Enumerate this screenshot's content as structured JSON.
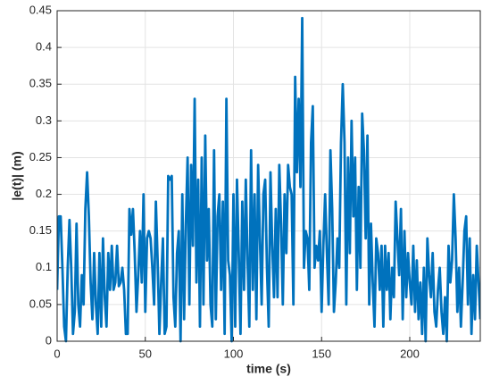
{
  "chart_data": {
    "type": "line",
    "xlabel": "time (s)",
    "ylabel": "|e(t)| (m)",
    "x": [
      0,
      1,
      2,
      3,
      4,
      5,
      6,
      7,
      8,
      9,
      10,
      11,
      12,
      13,
      14,
      15,
      16,
      17,
      18,
      19,
      20,
      21,
      22,
      23,
      24,
      25,
      26,
      27,
      28,
      29,
      30,
      31,
      32,
      33,
      34,
      35,
      36,
      37,
      38,
      39,
      40,
      41,
      42,
      43,
      44,
      45,
      46,
      47,
      48,
      49,
      50,
      51,
      52,
      53,
      54,
      55,
      56,
      57,
      58,
      59,
      60,
      61,
      62,
      63,
      64,
      65,
      66,
      67,
      68,
      69,
      70,
      71,
      72,
      73,
      74,
      75,
      76,
      77,
      78,
      79,
      80,
      81,
      82,
      83,
      84,
      85,
      86,
      87,
      88,
      89,
      90,
      91,
      92,
      93,
      94,
      95,
      96,
      97,
      98,
      99,
      100,
      101,
      102,
      103,
      104,
      105,
      106,
      107,
      108,
      109,
      110,
      111,
      112,
      113,
      114,
      115,
      116,
      117,
      118,
      119,
      120,
      121,
      122,
      123,
      124,
      125,
      126,
      127,
      128,
      129,
      130,
      131,
      132,
      133,
      134,
      135,
      136,
      137,
      138,
      139,
      140,
      141,
      142,
      143,
      144,
      145,
      146,
      147,
      148,
      149,
      150,
      151,
      152,
      153,
      154,
      155,
      156,
      157,
      158,
      159,
      160,
      161,
      162,
      163,
      164,
      165,
      166,
      167,
      168,
      169,
      170,
      171,
      172,
      173,
      174,
      175,
      176,
      177,
      178,
      179,
      180,
      181,
      182,
      183,
      184,
      185,
      186,
      187,
      188,
      189,
      190,
      191,
      192,
      193,
      194,
      195,
      196,
      197,
      198,
      199,
      200,
      201,
      202,
      203,
      204,
      205,
      206,
      207,
      208,
      209,
      210,
      211,
      212,
      213,
      214,
      215,
      216,
      217,
      218,
      219,
      220,
      221,
      222,
      223,
      224,
      225,
      226,
      227,
      228,
      229,
      230,
      231,
      232,
      233,
      234,
      235,
      236,
      237,
      238,
      239,
      240
    ],
    "series": [
      {
        "name": "e",
        "color": "#0072bd",
        "values": [
          0.07,
          0.17,
          0.17,
          0.1,
          0.02,
          0.0,
          0.1,
          0.165,
          0.1,
          0.01,
          0.04,
          0.16,
          0.05,
          0.02,
          0.09,
          0.05,
          0.18,
          0.23,
          0.17,
          0.08,
          0.03,
          0.12,
          0.05,
          0.01,
          0.12,
          0.02,
          0.14,
          0.06,
          0.02,
          0.12,
          0.07,
          0.13,
          0.07,
          0.08,
          0.13,
          0.075,
          0.08,
          0.1,
          0.07,
          0.01,
          0.01,
          0.18,
          0.145,
          0.18,
          0.12,
          0.04,
          0.09,
          0.15,
          0.08,
          0.2,
          0.04,
          0.14,
          0.15,
          0.14,
          0.1,
          0.05,
          0.19,
          0.11,
          0.01,
          0.08,
          0.14,
          0.01,
          0.02,
          0.225,
          0.22,
          0.225,
          0.06,
          0.02,
          0.12,
          0.15,
          0.0,
          0.2,
          0.03,
          0.16,
          0.25,
          0.05,
          0.24,
          0.13,
          0.33,
          0.08,
          0.22,
          0.02,
          0.25,
          0.05,
          0.28,
          0.11,
          0.18,
          0.05,
          0.02,
          0.26,
          0.03,
          0.17,
          0.2,
          0.07,
          0.19,
          0.01,
          0.33,
          0.11,
          0.09,
          0.0,
          0.2,
          0.02,
          0.22,
          0.12,
          0.01,
          0.19,
          0.07,
          0.22,
          0.11,
          0.02,
          0.26,
          0.07,
          0.2,
          0.03,
          0.24,
          0.14,
          0.05,
          0.2,
          0.22,
          0.1,
          0.02,
          0.23,
          0.13,
          0.06,
          0.18,
          0.06,
          0.24,
          0.16,
          0.05,
          0.2,
          0.12,
          0.24,
          0.21,
          0.2,
          0.05,
          0.36,
          0.23,
          0.33,
          0.21,
          0.44,
          0.1,
          0.15,
          0.14,
          0.07,
          0.27,
          0.32,
          0.1,
          0.13,
          0.11,
          0.15,
          0.04,
          0.13,
          0.2,
          0.12,
          0.05,
          0.26,
          0.18,
          0.04,
          0.08,
          0.14,
          0.1,
          0.27,
          0.35,
          0.27,
          0.05,
          0.25,
          0.12,
          0.3,
          0.17,
          0.25,
          0.07,
          0.21,
          0.1,
          0.31,
          0.26,
          0.14,
          0.28,
          0.05,
          0.16,
          0.08,
          0.02,
          0.14,
          0.12,
          0.07,
          0.13,
          0.02,
          0.13,
          0.07,
          0.12,
          0.03,
          0.1,
          0.06,
          0.19,
          0.14,
          0.09,
          0.18,
          0.03,
          0.15,
          0.06,
          0.12,
          0.08,
          0.05,
          0.13,
          0.04,
          0.11,
          0.03,
          0.08,
          0.01,
          0.1,
          0.0,
          0.14,
          0.09,
          0.06,
          0.12,
          0.04,
          0.02,
          0.07,
          0.1,
          0.04,
          0.01,
          0.06,
          0.0,
          0.13,
          0.08,
          0.11,
          0.2,
          0.14,
          0.04,
          0.1,
          0.02,
          0.08,
          0.15,
          0.17,
          0.05,
          0.14,
          0.01,
          0.09,
          0.03,
          0.13,
          0.08,
          0.03
        ]
      }
    ],
    "xlim": [
      0,
      240
    ],
    "xticks": [
      0,
      50,
      100,
      150,
      200
    ],
    "ylim": [
      0,
      0.45
    ],
    "yticks": [
      0,
      0.05,
      0.1,
      0.15,
      0.2,
      0.25,
      0.3,
      0.35,
      0.4,
      0.45
    ],
    "grid": true
  }
}
